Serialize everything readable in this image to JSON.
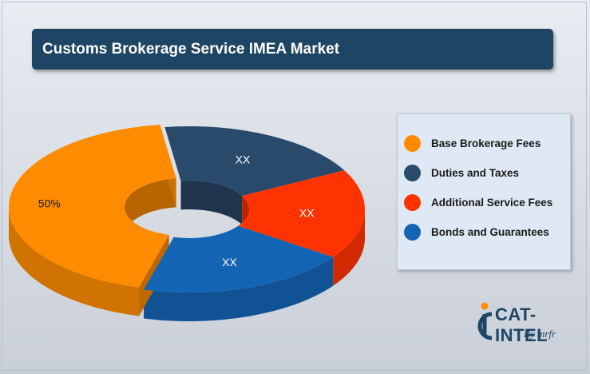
{
  "title": "Customs Brokerage Service IMEA Market",
  "chart_data": {
    "type": "pie",
    "title": "Customs Brokerage Service IMEA Market",
    "categories": [
      "Base Brokerage Fees",
      "Duties and Taxes",
      "Additional Service Fees",
      "Bonds and Guarantees"
    ],
    "values": [
      50,
      null,
      null,
      null
    ],
    "data_labels": [
      "50%",
      "XX",
      "XX",
      "XX"
    ],
    "colors": [
      "#ff8c00",
      "#2a4a6b",
      "#ff3300",
      "#1464b4"
    ],
    "legend_position": "right",
    "style": "3d-donut"
  },
  "legend": {
    "items": [
      {
        "label": "Base Brokerage Fees",
        "color": "#ff8c00"
      },
      {
        "label": "Duties and Taxes",
        "color": "#2a4a6b"
      },
      {
        "label": "Additional Service Fees",
        "color": "#ff3300"
      },
      {
        "label": "Bonds and Guarantees",
        "color": "#1464b4"
      }
    ]
  },
  "logo": {
    "text": "CAT-INTEL",
    "sub": "By mrfr",
    "colors": {
      "primary": "#1f4565",
      "accent": "#ff8c00"
    }
  }
}
